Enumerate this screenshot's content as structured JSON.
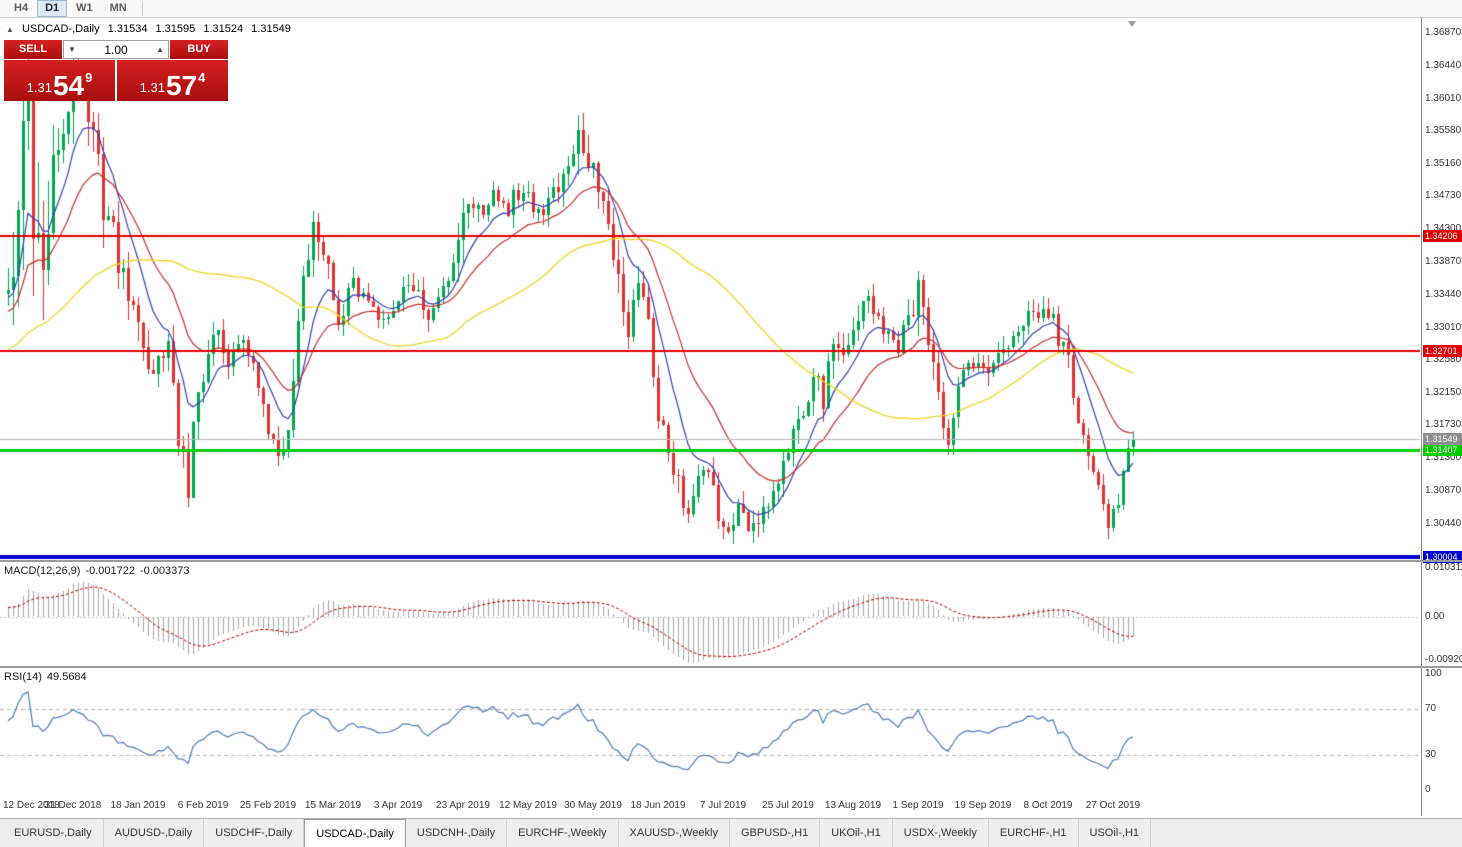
{
  "toolbar": {
    "timeframes": [
      "H4",
      "D1",
      "W1",
      "MN"
    ],
    "active_timeframe": "D1"
  },
  "chart_header": {
    "collapse_icon": "▲",
    "symbol": "USDCAD-,Daily",
    "open": "1.31534",
    "high": "1.31595",
    "low": "1.31524",
    "close": "1.31549"
  },
  "trade_panel": {
    "sell_label": "SELL",
    "buy_label": "BUY",
    "volume": "1.00",
    "sell_price": {
      "big": "1.31",
      "pips": "54",
      "pipette": "9"
    },
    "buy_price": {
      "big": "1.31",
      "pips": "57",
      "pipette": "4"
    }
  },
  "price_axis": {
    "ticks": [
      "1.36870",
      "1.36440",
      "1.36010",
      "1.35580",
      "1.35160",
      "1.34730",
      "1.34300",
      "1.33870",
      "1.33440",
      "1.33010",
      "1.32580",
      "1.32150",
      "1.31730",
      "1.31300",
      "1.30870",
      "1.30440"
    ],
    "current_price": {
      "text": "1.31549",
      "value": 1.31549,
      "bg": "#8c8c8c"
    }
  },
  "hlines": [
    {
      "text": "1.34206",
      "value": 1.34206,
      "color": "#e00000",
      "width": 2
    },
    {
      "text": "1.32701",
      "value": 1.32701,
      "color": "#e00000",
      "width": 2
    },
    {
      "text": "1.31407",
      "value": 1.31407,
      "color": "#00cc00",
      "width": 3
    },
    {
      "text": "1.30004",
      "value": 1.30004,
      "color": "#0000cc",
      "width": 4
    }
  ],
  "macd_panel": {
    "label": "MACD(12,26,9)",
    "value_main": "-0.001722",
    "value_signal": "-0.003373",
    "axis": [
      "0.010311",
      "0.00",
      "-0.009203"
    ],
    "axis_values": [
      0.010311,
      0,
      -0.009203
    ]
  },
  "rsi_panel": {
    "label": "RSI(14)",
    "value": "49.5684",
    "axis": [
      "100",
      "70",
      "30",
      "0"
    ],
    "axis_values": [
      100,
      70,
      30,
      0
    ],
    "levels": [
      70,
      30
    ]
  },
  "date_axis": {
    "labels": [
      {
        "i": 0,
        "text": "12 Dec 2018"
      },
      {
        "i": 13,
        "text": "31 Dec 2018"
      },
      {
        "i": 26,
        "text": "18 Jan 2019"
      },
      {
        "i": 39,
        "text": "6 Feb 2019"
      },
      {
        "i": 52,
        "text": "25 Feb 2019"
      },
      {
        "i": 65,
        "text": "15 Mar 2019"
      },
      {
        "i": 78,
        "text": "3 Apr 2019"
      },
      {
        "i": 91,
        "text": "23 Apr 2019"
      },
      {
        "i": 104,
        "text": "12 May 2019"
      },
      {
        "i": 117,
        "text": "30 May 2019"
      },
      {
        "i": 130,
        "text": "18 Jun 2019"
      },
      {
        "i": 143,
        "text": "7 Jul 2019"
      },
      {
        "i": 156,
        "text": "25 Jul 2019"
      },
      {
        "i": 169,
        "text": "13 Aug 2019"
      },
      {
        "i": 182,
        "text": "1 Sep 2019"
      },
      {
        "i": 195,
        "text": "19 Sep 2019"
      },
      {
        "i": 208,
        "text": "8 Oct 2019"
      },
      {
        "i": 221,
        "text": "27 Oct 2019"
      }
    ]
  },
  "bottom_tabs": {
    "items": [
      "EURUSD-,Daily",
      "AUDUSD-,Daily",
      "USDCHF-,Daily",
      "USDCAD-,Daily",
      "USDCNH-,Daily",
      "EURCHF-,Weekly",
      "XAUUSD-,Weekly",
      "GBPUSD-,H1",
      "UKOil-,H1",
      "USDX-,Weekly",
      "EURCHF-,H1",
      "USOil-,H1"
    ],
    "active": "USDCAD-,Daily"
  },
  "chart_data": {
    "type": "candlestick+indicators",
    "symbol": "USDCAD",
    "timeframe": "Daily",
    "price_range": [
      1.30004,
      1.3687
    ],
    "candle_count": 226,
    "last_close": 1.31549,
    "seed": 20191108,
    "price_anchors": [
      [
        0,
        1.335,
        0.012
      ],
      [
        2,
        1.347,
        0.018
      ],
      [
        4,
        1.3595,
        0.02
      ],
      [
        6,
        1.338,
        0.022
      ],
      [
        8,
        1.3455,
        0.016
      ],
      [
        11,
        1.358,
        0.012
      ],
      [
        14,
        1.3645,
        0.01
      ],
      [
        17,
        1.353,
        0.009
      ],
      [
        20,
        1.344,
        0.008
      ],
      [
        23,
        1.337,
        0.006
      ],
      [
        26,
        1.33,
        0.006
      ],
      [
        29,
        1.3245,
        0.005
      ],
      [
        32,
        1.327,
        0.005
      ],
      [
        34,
        1.315,
        0.007
      ],
      [
        36,
        1.3095,
        0.006
      ],
      [
        38,
        1.322,
        0.006
      ],
      [
        41,
        1.3305,
        0.005
      ],
      [
        44,
        1.325,
        0.004
      ],
      [
        47,
        1.329,
        0.004
      ],
      [
        50,
        1.3225,
        0.004
      ],
      [
        53,
        1.315,
        0.005
      ],
      [
        55,
        1.3125,
        0.005
      ],
      [
        57,
        1.323,
        0.007
      ],
      [
        59,
        1.336,
        0.007
      ],
      [
        61,
        1.345,
        0.006
      ],
      [
        64,
        1.339,
        0.005
      ],
      [
        66,
        1.331,
        0.005
      ],
      [
        69,
        1.336,
        0.004
      ],
      [
        72,
        1.333,
        0.004
      ],
      [
        75,
        1.331,
        0.004
      ],
      [
        78,
        1.334,
        0.004
      ],
      [
        81,
        1.3355,
        0.004
      ],
      [
        84,
        1.332,
        0.004
      ],
      [
        87,
        1.3345,
        0.004
      ],
      [
        89,
        1.339,
        0.005
      ],
      [
        91,
        1.3475,
        0.007
      ],
      [
        94,
        1.3445,
        0.005
      ],
      [
        97,
        1.348,
        0.004
      ],
      [
        100,
        1.346,
        0.004
      ],
      [
        103,
        1.3485,
        0.004
      ],
      [
        106,
        1.3455,
        0.004
      ],
      [
        109,
        1.3475,
        0.004
      ],
      [
        112,
        1.352,
        0.005
      ],
      [
        114,
        1.3555,
        0.006
      ],
      [
        117,
        1.3515,
        0.005
      ],
      [
        120,
        1.344,
        0.005
      ],
      [
        122,
        1.337,
        0.006
      ],
      [
        124,
        1.33,
        0.006
      ],
      [
        126,
        1.336,
        0.005
      ],
      [
        128,
        1.33,
        0.005
      ],
      [
        130,
        1.32,
        0.006
      ],
      [
        132,
        1.313,
        0.005
      ],
      [
        134,
        1.309,
        0.005
      ],
      [
        136,
        1.306,
        0.004
      ],
      [
        138,
        1.3095,
        0.004
      ],
      [
        140,
        1.312,
        0.004
      ],
      [
        142,
        1.305,
        0.005
      ],
      [
        144,
        1.3035,
        0.004
      ],
      [
        146,
        1.3075,
        0.004
      ],
      [
        148,
        1.3025,
        0.004
      ],
      [
        151,
        1.306,
        0.004
      ],
      [
        154,
        1.311,
        0.004
      ],
      [
        156,
        1.314,
        0.004
      ],
      [
        158,
        1.3185,
        0.005
      ],
      [
        161,
        1.324,
        0.006
      ],
      [
        163,
        1.321,
        0.005
      ],
      [
        165,
        1.329,
        0.006
      ],
      [
        167,
        1.325,
        0.005
      ],
      [
        169,
        1.33,
        0.005
      ],
      [
        172,
        1.333,
        0.005
      ],
      [
        175,
        1.329,
        0.004
      ],
      [
        178,
        1.327,
        0.004
      ],
      [
        180,
        1.331,
        0.005
      ],
      [
        182,
        1.3345,
        0.006
      ],
      [
        184,
        1.329,
        0.005
      ],
      [
        186,
        1.321,
        0.005
      ],
      [
        188,
        1.315,
        0.005
      ],
      [
        190,
        1.323,
        0.004
      ],
      [
        193,
        1.3255,
        0.004
      ],
      [
        195,
        1.3245,
        0.004
      ],
      [
        198,
        1.326,
        0.004
      ],
      [
        201,
        1.329,
        0.004
      ],
      [
        204,
        1.332,
        0.004
      ],
      [
        207,
        1.333,
        0.004
      ],
      [
        209,
        1.331,
        0.004
      ],
      [
        212,
        1.325,
        0.005
      ],
      [
        215,
        1.316,
        0.005
      ],
      [
        218,
        1.309,
        0.005
      ],
      [
        220,
        1.3048,
        0.004
      ],
      [
        222,
        1.308,
        0.004
      ],
      [
        224,
        1.3135,
        0.003
      ],
      [
        225,
        1.31549,
        0.003
      ]
    ],
    "moving_averages": [
      {
        "period": 9,
        "type": "ema",
        "color": "#3340b4"
      },
      {
        "period": 21,
        "type": "ema",
        "color": "#cc2e2e"
      },
      {
        "period": 55,
        "type": "sma",
        "color": "#f5d117"
      }
    ],
    "colors": {
      "up": "#00a651",
      "down": "#e03232",
      "background": "#ffffff"
    },
    "macd": {
      "fast": 12,
      "slow": 26,
      "signal": 9,
      "hist_color": "#a8a8a8",
      "signal_color": "#c00000"
    },
    "rsi": {
      "period": 14,
      "color": "#4a7ebf"
    }
  }
}
